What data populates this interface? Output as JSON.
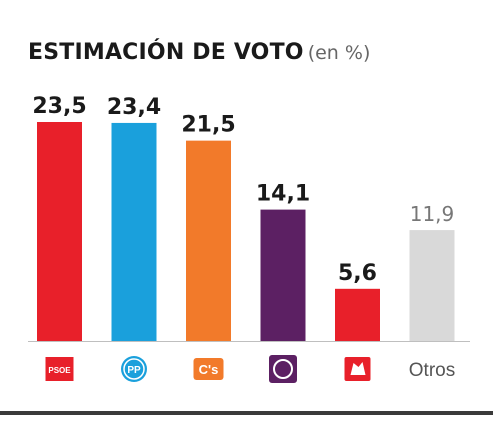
{
  "chart_data": {
    "type": "bar",
    "title": "ESTIMACIÓN DE VOTO",
    "subtitle": "(en %)",
    "categories": [
      "PSOE",
      "PP",
      "C's",
      "Podemos",
      "IU",
      "Otros"
    ],
    "values": [
      23.5,
      23.4,
      21.5,
      14.1,
      5.6,
      11.9
    ],
    "value_labels": [
      "23,5",
      "23,4",
      "21,5",
      "14,1",
      "5,6",
      "11,9"
    ],
    "colors": [
      "#e8202a",
      "#1aa0dc",
      "#f27a2a",
      "#5c2063",
      "#e8202a",
      "#d9d9d9"
    ],
    "ylim": [
      0,
      23.5
    ],
    "xlabel": "",
    "ylabel": "",
    "category_labels": [
      {
        "kind": "logo",
        "icon": "psoe-logo-icon",
        "text": "PSOE",
        "color": "#e8202a"
      },
      {
        "kind": "logo",
        "icon": "pp-logo-icon",
        "text": "PP",
        "color": "#1aa0dc"
      },
      {
        "kind": "logo",
        "icon": "ciudadanos-logo-icon",
        "text": "C's",
        "color": "#f27a2a"
      },
      {
        "kind": "logo",
        "icon": "podemos-logo-icon",
        "text": "",
        "color": "#5c2063"
      },
      {
        "kind": "logo",
        "icon": "iu-logo-icon",
        "text": "",
        "color": "#e8202a"
      },
      {
        "kind": "text",
        "text": "Otros",
        "color": "#555555"
      }
    ],
    "grid": false,
    "legend": "none"
  }
}
